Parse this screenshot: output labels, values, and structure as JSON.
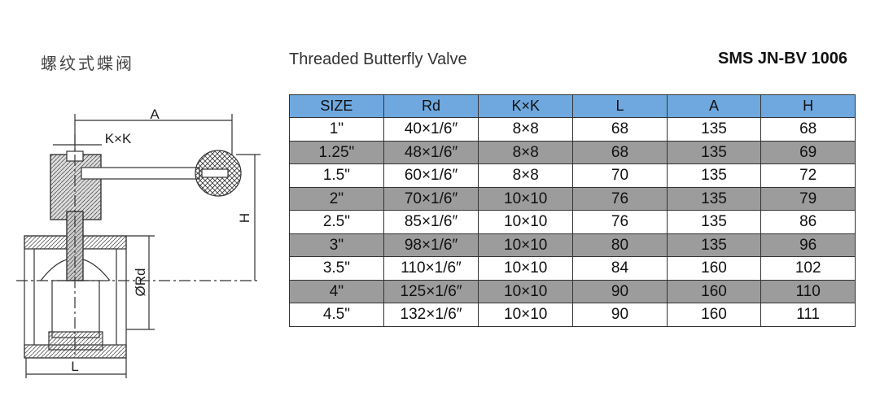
{
  "header": {
    "title_cn": "螺纹式蝶阀",
    "title": "Threaded Butterfly Valve",
    "code": "SMS JN-BV 1006"
  },
  "drawing": {
    "labels": {
      "a": "A",
      "kxk": "K×K",
      "h": "H",
      "rd": "ØRd",
      "l": "L"
    }
  },
  "table": {
    "columns": [
      "SIZE",
      "Rd",
      "K×K",
      "L",
      "A",
      "H"
    ],
    "rows": [
      [
        "1\"",
        "40×1/6″",
        "8×8",
        "68",
        "135",
        "68"
      ],
      [
        "1.25\"",
        "48×1/6″",
        "8×8",
        "68",
        "135",
        "69"
      ],
      [
        "1.5\"",
        "60×1/6″",
        "8×8",
        "70",
        "135",
        "72"
      ],
      [
        "2\"",
        "70×1/6″",
        "10×10",
        "76",
        "135",
        "79"
      ],
      [
        "2.5\"",
        "85×1/6″",
        "10×10",
        "76",
        "135",
        "86"
      ],
      [
        "3\"",
        "98×1/6″",
        "10×10",
        "80",
        "135",
        "96"
      ],
      [
        "3.5\"",
        "110×1/6″",
        "10×10",
        "84",
        "160",
        "102"
      ],
      [
        "4\"",
        "125×1/6″",
        "10×10",
        "90",
        "160",
        "110"
      ],
      [
        "4.5\"",
        "132×1/6″",
        "10×10",
        "90",
        "160",
        "111"
      ]
    ]
  }
}
